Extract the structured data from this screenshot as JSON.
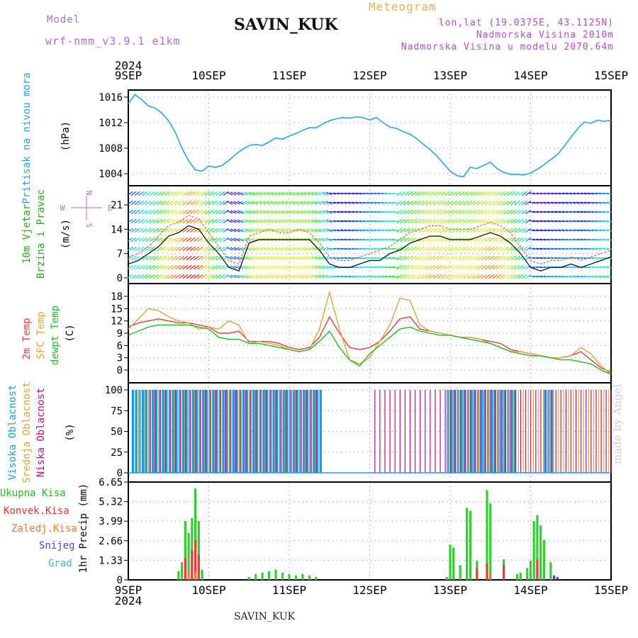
{
  "header": {
    "model_label": "Model",
    "model_value": "wrf-nmm_v3.9.1  e1km",
    "station": "SAVIN_KUK",
    "meteogram_title": "Meteogram",
    "lonlat": "lon,lat (19.0375E, 43.1125N)",
    "elevation": "Nadmorska Visina 2010m",
    "model_elevation": "Nadmorska Visina u modelu 2070.64m"
  },
  "footer": {
    "station": "SAVIN_KUK",
    "made_by": "made by Angel"
  },
  "time_axis": {
    "year": "2024",
    "labels": [
      "9SEP",
      "10SEP",
      "11SEP",
      "12SEP",
      "13SEP",
      "14SEP",
      "15SEP"
    ]
  },
  "colors": {
    "pressure": "#29a3e8",
    "wind_black": "#000000",
    "gust": "#ff3030",
    "temp2m": "#e83c3c",
    "sfc": "#d9a63a",
    "dewpt": "#22bb22",
    "high_cloud": "#1a9de6",
    "mid_cloud": "#d9a63a",
    "low_cloud": "#c01080",
    "total_precip": "#33cc33",
    "conv_precip": "#e83c3c",
    "frozen_precip": "#ee7733",
    "snow": "#4444dd",
    "hail": "#33cccc",
    "label_pressure": "#2aa0e0",
    "label_wind": "#22aa22",
    "label_precip_total": "#22bb22",
    "label_precip_conv": "#dd3333",
    "label_precip_frozen": "#ee7733",
    "label_snow": "#4444dd",
    "label_hail": "#33bbbb",
    "label_purple": "#b06ad8"
  },
  "panels": {
    "pressure": {
      "ylabels": [
        "Pritisak na nivou mora",
        "(hPa)"
      ]
    },
    "wind": {
      "ylabels": [
        "10m Vjetar",
        "Brzina i Pravac",
        "(m/s)"
      ],
      "compass": {
        "n": "N",
        "s": "S",
        "e": "E",
        "w": "W"
      }
    },
    "temp": {
      "ylabels": [
        "2m Temp",
        "SFC Temp",
        "dewpt Temp",
        "(C)"
      ]
    },
    "cloud": {
      "ylabels": [
        "Visoka Oblacnost",
        "Srednja Oblacnost",
        "Niska Oblacnost",
        "(%)"
      ]
    },
    "precip": {
      "ylabels": [
        "Ukupna Kisa",
        "Konvek.Kisa",
        "Zaledj.Kisa",
        "Snijeg",
        "Grad"
      ],
      "unit_label": "1hr Precip (mm)"
    }
  },
  "chart_data": [
    {
      "type": "line",
      "title": "Pritisak na nivou mora",
      "ylabel": "(hPa)",
      "ylim": [
        1003,
        1017.5
      ],
      "yticks": [
        1004,
        1008,
        1012,
        1016
      ],
      "x_hours": [
        0,
        2,
        4,
        6,
        8,
        10,
        12,
        14,
        16,
        18,
        20,
        22,
        24,
        26,
        28,
        30,
        32,
        34,
        36,
        38,
        40,
        42,
        44,
        46,
        48,
        50,
        52,
        54,
        56,
        58,
        60,
        62,
        64,
        66,
        68,
        70,
        72,
        74,
        76,
        78,
        80,
        82,
        84,
        86,
        88,
        90,
        92,
        94,
        96,
        98,
        100,
        102,
        104,
        106,
        108,
        110,
        112,
        114,
        116,
        118,
        120,
        122,
        124,
        126,
        128,
        130,
        132,
        134,
        136,
        138,
        140,
        142,
        144
      ],
      "series": [
        {
          "values": [
            1015.0,
            1016.4,
            1015.6,
            1014.6,
            1014.3,
            1013.5,
            1012.3,
            1010.5,
            1008.0,
            1006.0,
            1004.6,
            1004.4,
            1005.2,
            1005.0,
            1005.3,
            1006.1,
            1007.0,
            1007.8,
            1008.4,
            1008.6,
            1008.4,
            1009.0,
            1009.6,
            1009.4,
            1009.9,
            1010.3,
            1010.8,
            1011.2,
            1011.2,
            1011.8,
            1012.3,
            1012.6,
            1012.8,
            1012.7,
            1012.9,
            1012.8,
            1012.4,
            1012.8,
            1012.0,
            1011.3,
            1011.1,
            1010.6,
            1010.2,
            1009.5,
            1008.6,
            1007.8,
            1006.8,
            1005.6,
            1004.4,
            1003.7,
            1003.5,
            1005.0,
            1004.8,
            1005.3,
            1005.8,
            1004.8,
            1004.2,
            1003.9,
            1003.9,
            1003.8,
            1004.1,
            1004.7,
            1005.4,
            1006.2,
            1007.0,
            1008.3,
            1009.7,
            1011.0,
            1012.1,
            1011.9,
            1012.4,
            1012.2,
            1012.4
          ]
        }
      ]
    },
    {
      "type": "line",
      "title": "10m Vjetar Brzina i Pravac",
      "ylabel": "(m/s)",
      "ylim": [
        0,
        25
      ],
      "yticks": [
        0,
        7,
        14,
        21
      ],
      "x_hours": [
        0,
        3,
        6,
        9,
        12,
        15,
        18,
        21,
        24,
        27,
        30,
        33,
        36,
        39,
        42,
        45,
        48,
        51,
        54,
        57,
        60,
        63,
        66,
        69,
        72,
        75,
        78,
        81,
        84,
        87,
        90,
        93,
        96,
        99,
        102,
        105,
        108,
        111,
        114,
        117,
        120,
        123,
        126,
        129,
        132,
        135,
        138,
        141,
        144
      ],
      "series": [
        {
          "values": [
            4,
            5,
            7,
            9,
            12,
            13,
            15,
            14,
            10,
            7,
            3,
            2,
            10,
            11,
            11,
            11,
            11,
            11,
            11,
            8,
            4,
            3,
            3,
            4,
            5,
            5,
            7,
            8,
            10,
            11,
            12,
            12,
            11,
            11,
            11,
            12,
            13,
            12,
            10,
            7,
            3,
            2,
            3,
            3,
            4,
            3,
            4,
            5,
            6
          ]
        },
        {
          "values": [
            6,
            7,
            9,
            12,
            15,
            16,
            18,
            17,
            13,
            9,
            5,
            4,
            12,
            13,
            14,
            13,
            13,
            14,
            13,
            10,
            6,
            5,
            5,
            6,
            7,
            8,
            9,
            11,
            13,
            14,
            15,
            15,
            14,
            14,
            14,
            15,
            16,
            15,
            13,
            9,
            5,
            4,
            5,
            5,
            6,
            5,
            6,
            7,
            8
          ]
        }
      ],
      "wind_direction_note": "arrows colored by speed"
    },
    {
      "type": "line",
      "title": "2m Temp / SFC Temp / dewpt Temp",
      "ylabel": "(C)",
      "ylim": [
        -1.5,
        19.5
      ],
      "yticks": [
        0,
        3,
        6,
        9,
        12,
        15,
        18
      ],
      "x_hours": [
        0,
        3,
        6,
        9,
        12,
        15,
        18,
        21,
        24,
        27,
        30,
        33,
        36,
        39,
        42,
        45,
        48,
        51,
        54,
        57,
        60,
        63,
        66,
        69,
        72,
        75,
        78,
        81,
        84,
        87,
        90,
        93,
        96,
        99,
        102,
        105,
        108,
        111,
        114,
        117,
        120,
        123,
        126,
        129,
        132,
        135,
        138,
        141,
        144
      ],
      "series": [
        {
          "name": "2m Temp",
          "values": [
            10.5,
            11.5,
            12.0,
            12.5,
            12.0,
            11.5,
            11.5,
            11.0,
            10.5,
            9.0,
            9.0,
            9.5,
            7.0,
            7.0,
            7.0,
            6.5,
            5.5,
            5.0,
            5.5,
            8.0,
            13.0,
            9.0,
            5.5,
            5.0,
            5.5,
            7.0,
            9.5,
            12.5,
            13.0,
            10.0,
            9.5,
            9.0,
            8.5,
            8.0,
            8.0,
            7.5,
            7.0,
            6.5,
            5.0,
            4.5,
            4.0,
            3.5,
            3.0,
            3.0,
            3.5,
            4.5,
            2.5,
            0.5,
            -0.5
          ]
        },
        {
          "name": "SFC Temp",
          "values": [
            10.0,
            12.5,
            15.0,
            14.5,
            13.0,
            12.0,
            11.5,
            10.0,
            10.5,
            10.0,
            12.0,
            11.0,
            6.5,
            7.0,
            6.5,
            6.0,
            5.0,
            4.5,
            5.0,
            10.0,
            19.0,
            10.0,
            2.5,
            1.5,
            3.0,
            7.0,
            11.0,
            17.5,
            17.0,
            11.0,
            9.5,
            9.0,
            8.5,
            8.0,
            8.0,
            7.5,
            6.5,
            5.5,
            4.5,
            4.5,
            4.0,
            3.5,
            3.0,
            3.0,
            3.5,
            5.5,
            4.0,
            1.0,
            -1.0
          ]
        },
        {
          "name": "dewpt Temp",
          "values": [
            8.5,
            9.5,
            10.5,
            11.0,
            11.0,
            11.0,
            11.0,
            10.5,
            10.0,
            8.0,
            7.5,
            7.5,
            6.5,
            6.5,
            6.0,
            5.5,
            5.0,
            4.5,
            5.0,
            7.0,
            9.5,
            5.5,
            2.5,
            1.0,
            4.0,
            6.0,
            8.0,
            10.0,
            10.5,
            9.5,
            9.0,
            8.5,
            8.5,
            8.0,
            7.5,
            7.0,
            6.5,
            5.5,
            4.5,
            4.0,
            3.5,
            3.5,
            3.0,
            2.5,
            2.5,
            2.0,
            1.5,
            0.0,
            -1.0
          ]
        }
      ]
    },
    {
      "type": "bar",
      "title": "Visoka / Srednja / Niska Oblacnost",
      "ylabel": "(%)",
      "ylim": [
        0,
        100
      ],
      "yticks": [
        0,
        25,
        50,
        75,
        100
      ],
      "series": [
        {
          "name": "Visoka Oblacnost",
          "ranges_hours": [
            [
              1,
              57
            ],
            [
              95,
              115
            ],
            [
              124,
              126
            ]
          ],
          "value": 100
        },
        {
          "name": "Srednja Oblacnost",
          "ranges_hours": [
            [
              3,
              56
            ],
            [
              95,
              144
            ]
          ],
          "value": 100
        },
        {
          "name": "Niska Oblacnost",
          "ranges_hours": [
            [
              6,
              56
            ],
            [
              73,
              144
            ]
          ],
          "value": 100
        }
      ]
    },
    {
      "type": "bar",
      "title": "1hr Precip",
      "ylabel": "1hr Precip (mm)",
      "ylim": [
        0,
        6.65
      ],
      "yticks": [
        0,
        1.33,
        2.66,
        3.99,
        5.32,
        6.65
      ],
      "series": [
        {
          "name": "Ukupna Kisa",
          "bars": [
            [
              15,
              0.6
            ],
            [
              16,
              1.2
            ],
            [
              17,
              4.0
            ],
            [
              18,
              3.2
            ],
            [
              19,
              4.2
            ],
            [
              20,
              6.2
            ],
            [
              21,
              4.0
            ],
            [
              22,
              0.7
            ],
            [
              36,
              0.2
            ],
            [
              38,
              0.4
            ],
            [
              40,
              0.5
            ],
            [
              42,
              0.6
            ],
            [
              44,
              0.7
            ],
            [
              46,
              0.5
            ],
            [
              48,
              0.4
            ],
            [
              50,
              0.3
            ],
            [
              52,
              0.4
            ],
            [
              54,
              0.3
            ],
            [
              56,
              0.2
            ],
            [
              95,
              0.2
            ],
            [
              96,
              2.4
            ],
            [
              97,
              2.2
            ],
            [
              99,
              1.0
            ],
            [
              101,
              4.9
            ],
            [
              102,
              4.7
            ],
            [
              104,
              1.3
            ],
            [
              107,
              6.1
            ],
            [
              108,
              5.2
            ],
            [
              112,
              1.4
            ],
            [
              116,
              0.4
            ],
            [
              117,
              0.5
            ],
            [
              119,
              0.8
            ],
            [
              120,
              1.3
            ],
            [
              121,
              4.0
            ],
            [
              122,
              4.4
            ],
            [
              123,
              3.7
            ],
            [
              124,
              2.7
            ],
            [
              126,
              1.2
            ]
          ]
        },
        {
          "name": "Konvek.Kisa",
          "bars": [
            [
              17,
              1.5
            ],
            [
              19,
              2.0
            ],
            [
              20,
              2.7
            ],
            [
              21,
              1.7
            ],
            [
              104,
              0.8
            ],
            [
              107,
              1.1
            ],
            [
              112,
              1.0
            ],
            [
              122,
              1.4
            ]
          ]
        },
        {
          "name": "Zaledj.Kisa",
          "bars": [
            [
              18,
              0.6
            ],
            [
              20,
              0.5
            ],
            [
              108,
              0.4
            ]
          ]
        },
        {
          "name": "Snijeg",
          "bars": [
            [
              127,
              0.3
            ],
            [
              128,
              0.2
            ]
          ]
        },
        {
          "name": "Grad",
          "bars": []
        }
      ]
    }
  ]
}
